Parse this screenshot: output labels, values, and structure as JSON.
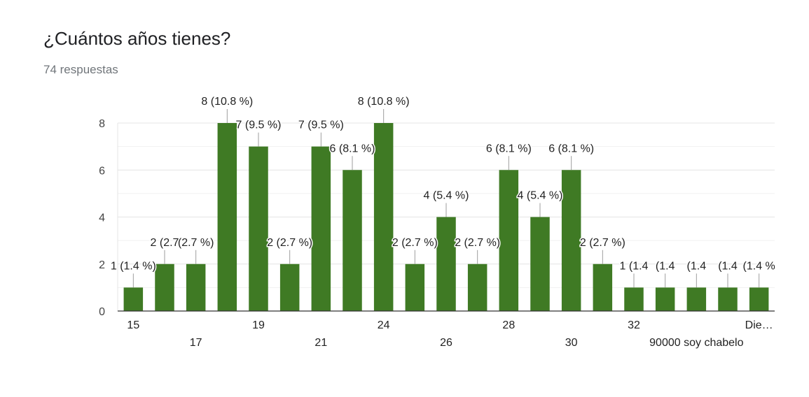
{
  "header": {
    "title": "¿Cuántos años tienes?",
    "subtitle": "74 respuestas"
  },
  "chart_data": {
    "type": "bar",
    "bar_color": "#3f7a24",
    "label_color": "#222222",
    "grid": true,
    "ylim": [
      0,
      8
    ],
    "yticks": [
      "0",
      "2",
      "4",
      "6",
      "8"
    ],
    "categories": [
      "15",
      "",
      "17",
      "",
      "19",
      "",
      "21",
      "",
      "24",
      "",
      "26",
      "",
      "28",
      "",
      "30",
      "",
      "32",
      "",
      "90000 soy chabelo",
      "",
      "Die…"
    ],
    "values": [
      1,
      2,
      2,
      8,
      7,
      2,
      7,
      6,
      8,
      2,
      4,
      2,
      6,
      4,
      6,
      2,
      1,
      1,
      1,
      1,
      1
    ],
    "data_labels": [
      "1 (1.4 %)",
      "2 (2.7",
      "(2.7 %)",
      "8 (10.8 %)",
      "7 (9.5 %)",
      "2 (2.7 %)",
      "7 (9.5 %)",
      "6 (8.1 %)",
      "8 (10.8 %)",
      "2 (2.7 %)",
      "4 (5.4 %)",
      "2 (2.7 %)",
      "6 (8.1 %)",
      "4 (5.4 %)",
      "6 (8.1 %)",
      "2 (2.7 %)",
      "1 (1.4",
      "(1.4",
      "(1.4",
      "(1.4",
      "(1.4 %"
    ]
  }
}
